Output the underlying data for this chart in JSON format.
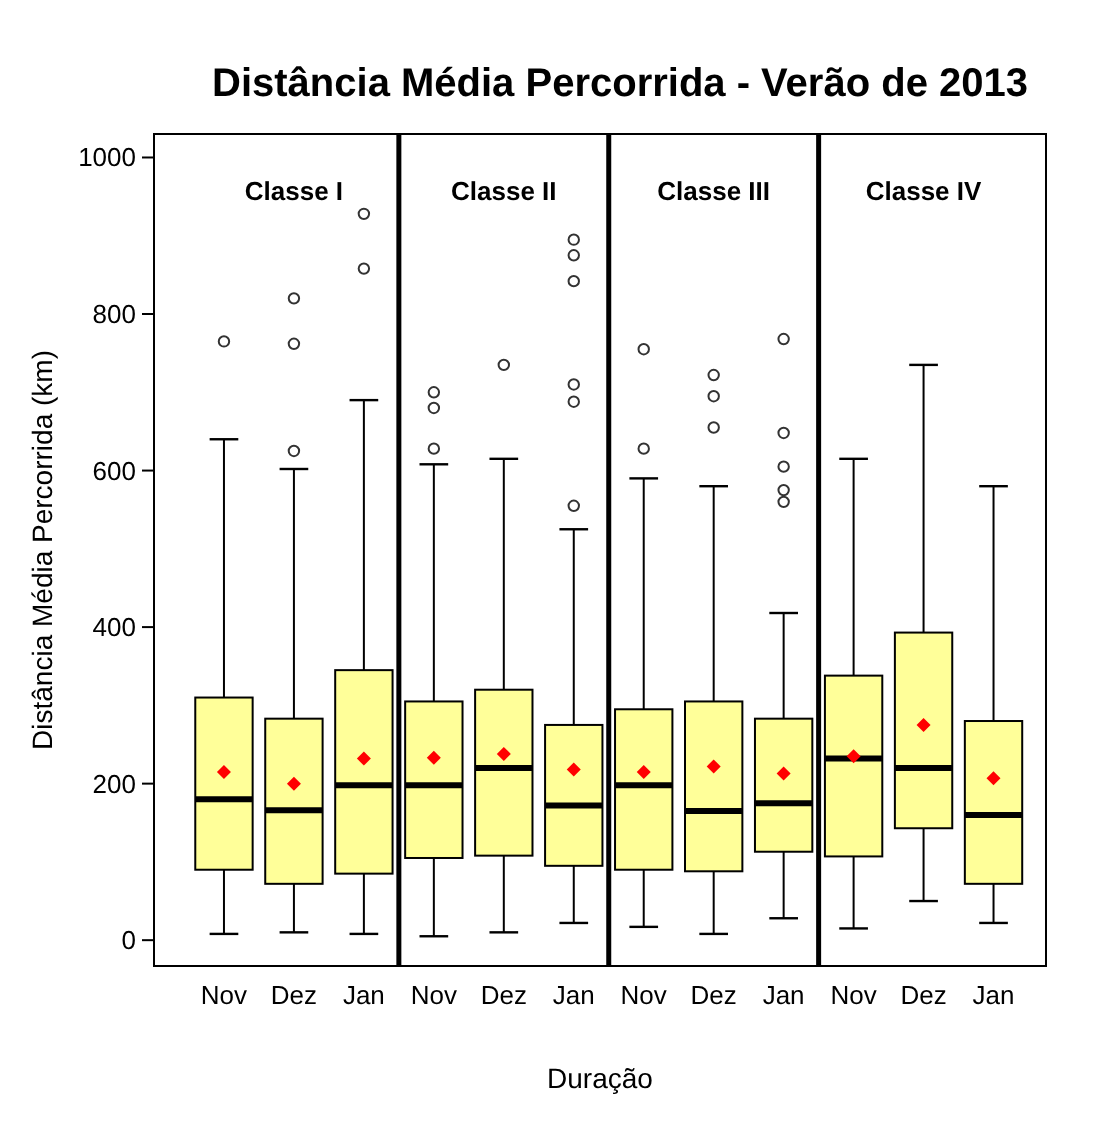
{
  "chart_data": {
    "type": "box",
    "title": "Distância Média Percorrida - Verão de 2013",
    "xlabel": "Duração",
    "ylabel": "Distância Média Percorrida (km)",
    "categories": [
      "Nov",
      "Dez",
      "Jan",
      "Nov",
      "Dez",
      "Jan",
      "Nov",
      "Dez",
      "Jan",
      "Nov",
      "Dez",
      "Jan"
    ],
    "color": "#ffff99",
    "boxes": [
      {
        "low": 8,
        "q1": 90,
        "median": 180,
        "q3": 310,
        "high": 640,
        "mean": 215,
        "outliers": [
          765
        ]
      },
      {
        "low": 10,
        "q1": 72,
        "median": 166,
        "q3": 283,
        "high": 602,
        "mean": 200,
        "outliers": [
          625,
          762,
          820
        ]
      },
      {
        "low": 8,
        "q1": 85,
        "median": 198,
        "q3": 345,
        "high": 690,
        "mean": 232,
        "outliers": [
          858,
          928
        ]
      },
      {
        "low": 5,
        "q1": 105,
        "median": 198,
        "q3": 305,
        "high": 608,
        "mean": 233,
        "outliers": [
          628,
          680,
          700
        ]
      },
      {
        "low": 10,
        "q1": 108,
        "median": 220,
        "q3": 320,
        "high": 615,
        "mean": 238,
        "outliers": [
          735
        ]
      },
      {
        "low": 22,
        "q1": 95,
        "median": 172,
        "q3": 275,
        "high": 525,
        "mean": 218,
        "outliers": [
          555,
          688,
          710,
          842,
          875,
          895
        ]
      },
      {
        "low": 17,
        "q1": 90,
        "median": 198,
        "q3": 295,
        "high": 590,
        "mean": 215,
        "outliers": [
          628,
          755
        ]
      },
      {
        "low": 8,
        "q1": 88,
        "median": 165,
        "q3": 305,
        "high": 580,
        "mean": 222,
        "outliers": [
          655,
          695,
          722
        ]
      },
      {
        "low": 28,
        "q1": 113,
        "median": 175,
        "q3": 283,
        "high": 418,
        "mean": 213,
        "outliers": [
          560,
          575,
          605,
          648,
          768
        ]
      },
      {
        "low": 15,
        "q1": 107,
        "median": 232,
        "q3": 338,
        "high": 615,
        "mean": 235
      },
      {
        "low": 50,
        "q1": 143,
        "median": 220,
        "q3": 393,
        "high": 735,
        "mean": 275
      },
      {
        "low": 22,
        "q1": 72,
        "median": 160,
        "q3": 280,
        "high": 580,
        "mean": 207
      }
    ],
    "ylim": [
      -33,
      1030
    ],
    "yticks": [
      0,
      200,
      400,
      600,
      800,
      1000
    ],
    "annotations": [
      "Classe I",
      "Classe II",
      "Classe III",
      "Classe IV"
    ]
  }
}
